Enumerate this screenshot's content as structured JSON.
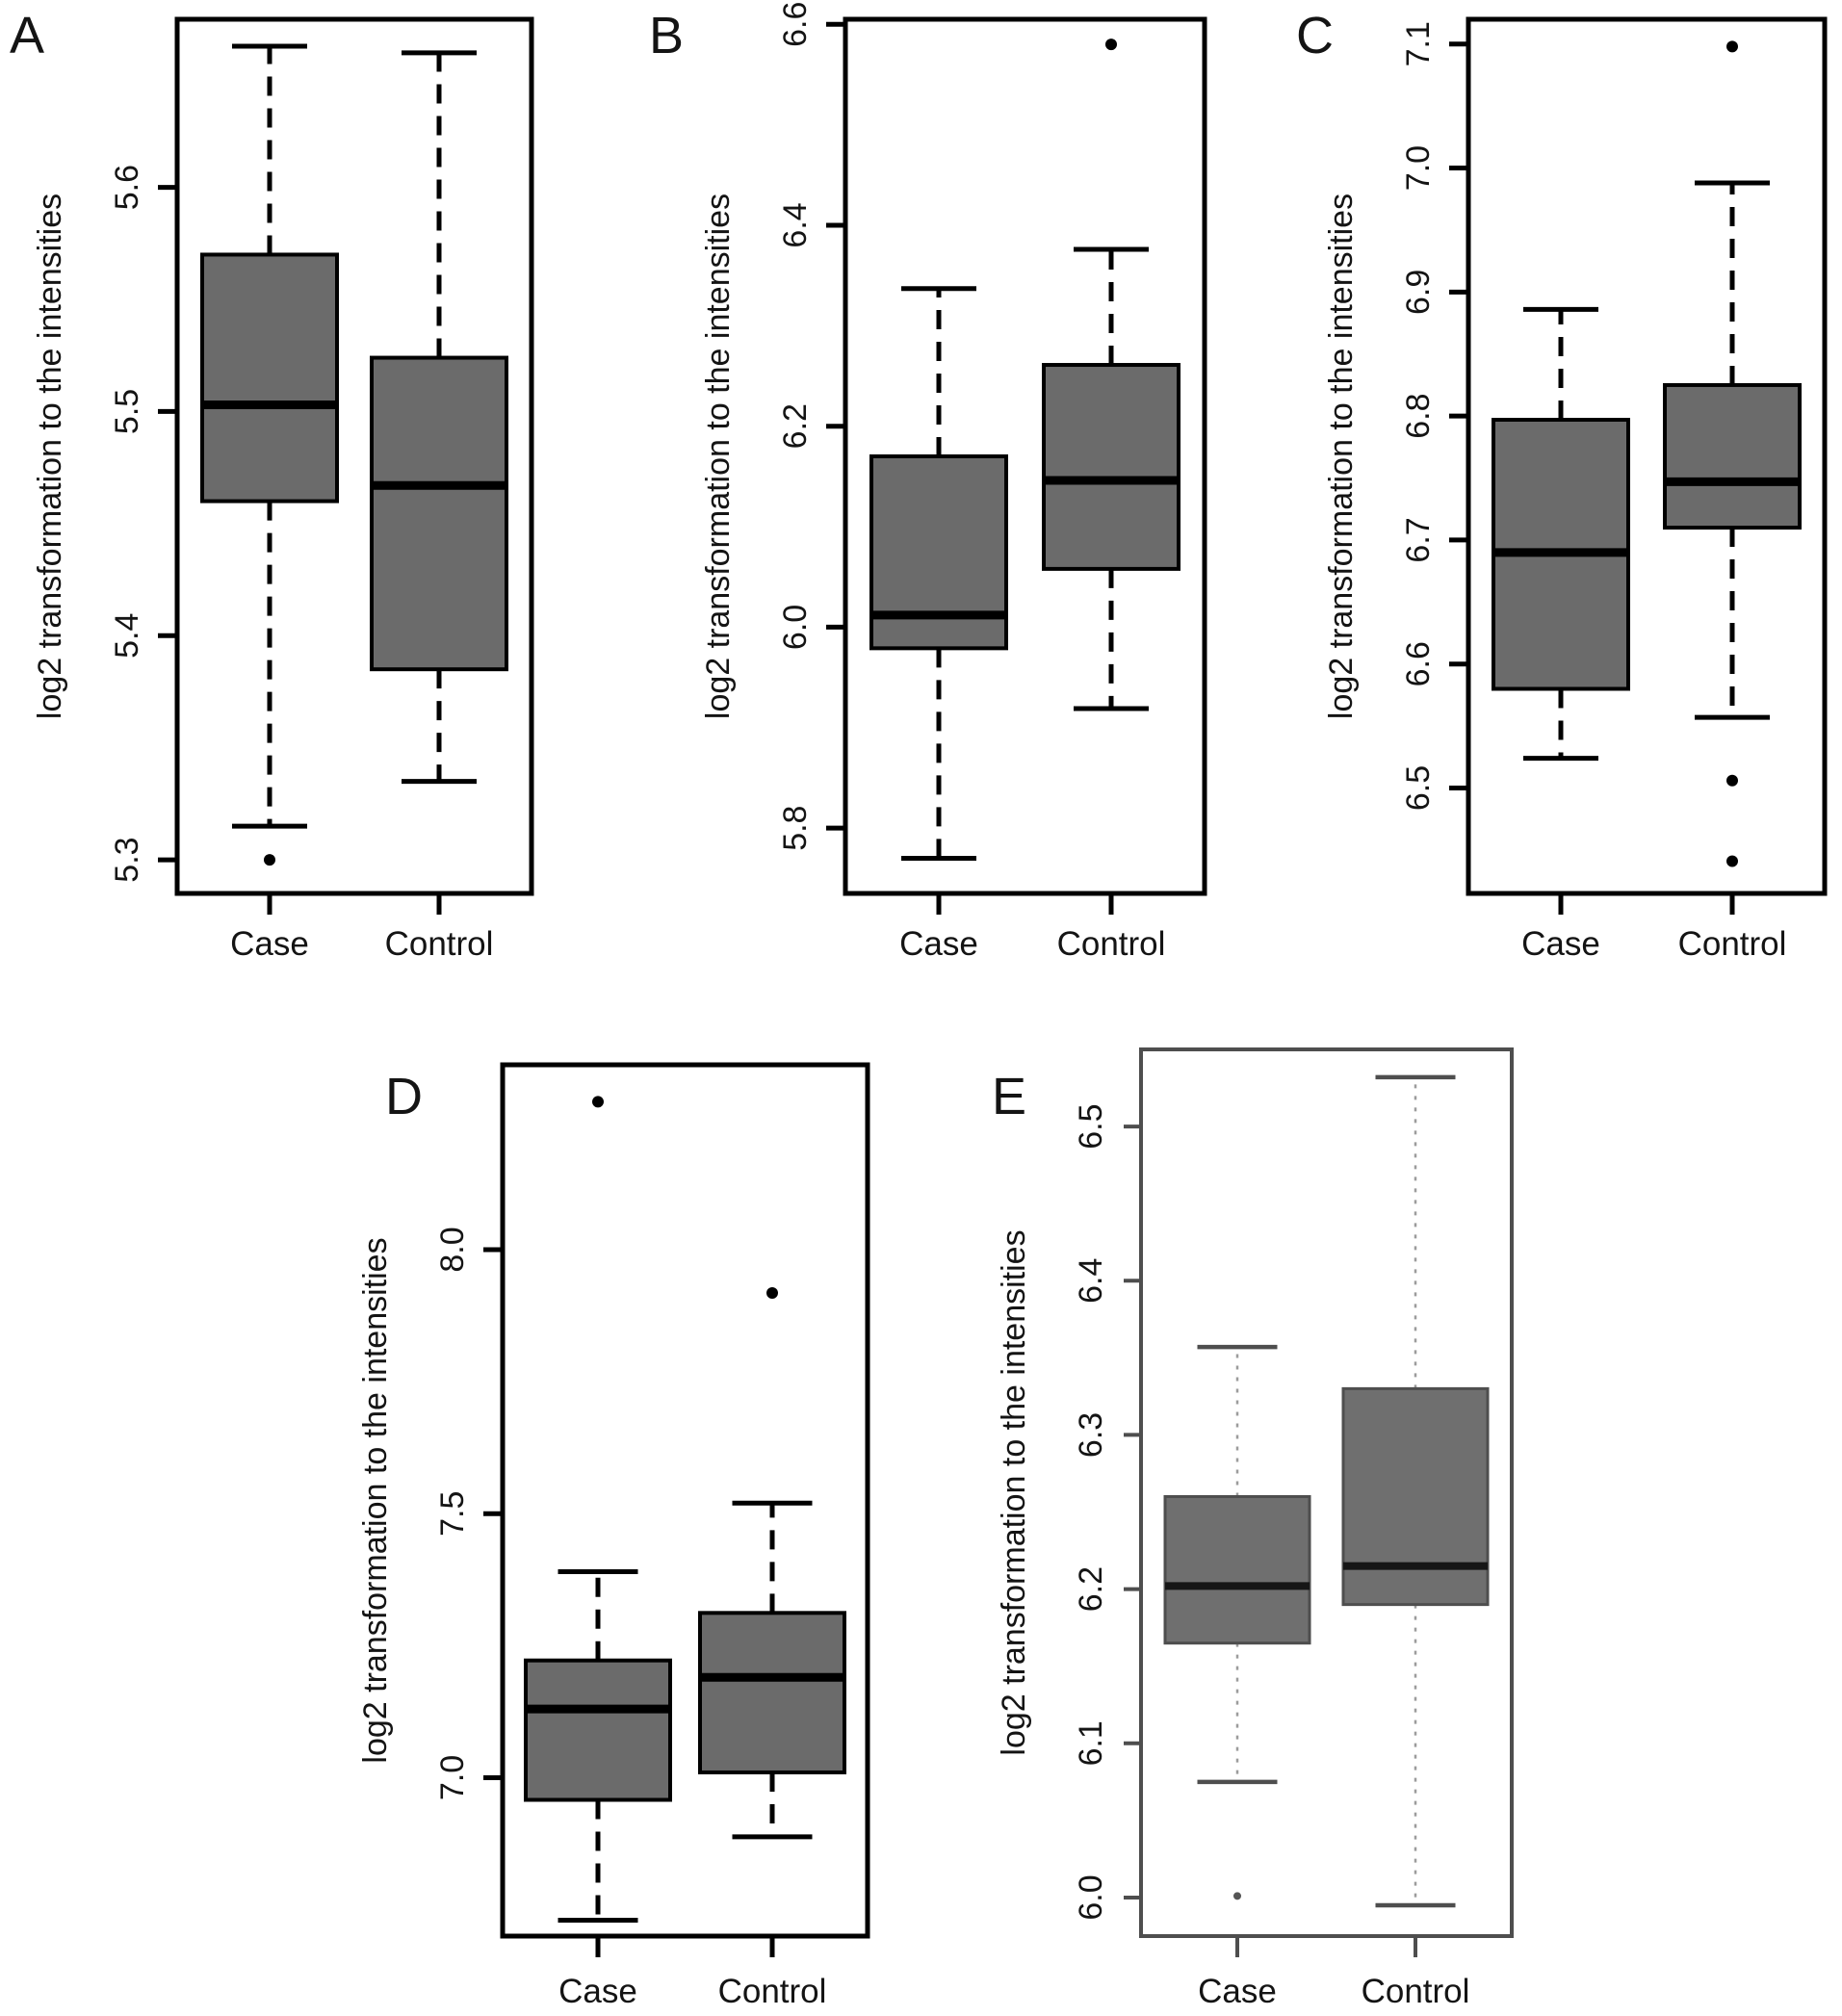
{
  "figure": {
    "background": "#ffffff",
    "text_color": "#141414",
    "box_fill": "#6b6b6b",
    "stroke_color": "#000000",
    "light_stroke_color": "#4e4e4e",
    "light_whisker_color": "#9c9c9c",
    "shared_ylabel": "log2 transformation to the intensities"
  },
  "chart_data": [
    {
      "panel": "A",
      "type": "box",
      "ylabel": "log2 transformation to the intensities",
      "categories": [
        "Case",
        "Control"
      ],
      "ytick_labels": [
        "5.3",
        "5.4",
        "5.5",
        "5.6"
      ],
      "yticks": [
        5.3,
        5.4,
        5.5,
        5.6
      ],
      "ylim": [
        5.285,
        5.675
      ],
      "grid": false,
      "style": "normal",
      "series": [
        {
          "name": "Case",
          "whislo": 5.315,
          "q1": 5.46,
          "med": 5.503,
          "q3": 5.57,
          "whishi": 5.663,
          "outliers": [
            5.3
          ]
        },
        {
          "name": "Control",
          "whislo": 5.335,
          "q1": 5.385,
          "med": 5.467,
          "q3": 5.524,
          "whishi": 5.66,
          "outliers": []
        }
      ]
    },
    {
      "panel": "B",
      "type": "box",
      "ylabel": "log2 transformation to the intensities",
      "categories": [
        "Case",
        "Control"
      ],
      "ytick_labels": [
        "5.8",
        "6.0",
        "6.2",
        "6.4",
        "6.6"
      ],
      "yticks": [
        5.8,
        6.0,
        6.2,
        6.4,
        6.6
      ],
      "ylim": [
        5.735,
        6.605
      ],
      "grid": false,
      "style": "normal",
      "series": [
        {
          "name": "Case",
          "whislo": 5.77,
          "q1": 5.979,
          "med": 6.012,
          "q3": 6.17,
          "whishi": 6.337,
          "outliers": []
        },
        {
          "name": "Control",
          "whislo": 5.919,
          "q1": 6.058,
          "med": 6.146,
          "q3": 6.261,
          "whishi": 6.376,
          "outliers": [
            6.58
          ]
        }
      ]
    },
    {
      "panel": "C",
      "type": "box",
      "ylabel": "log2 transformation to the intensities",
      "categories": [
        "Case",
        "Control"
      ],
      "ytick_labels": [
        "6.5",
        "6.6",
        "6.7",
        "6.8",
        "6.9",
        "7.0",
        "7.1"
      ],
      "yticks": [
        6.5,
        6.6,
        6.7,
        6.8,
        6.9,
        7.0,
        7.1
      ],
      "ylim": [
        6.415,
        7.12
      ],
      "grid": false,
      "style": "normal",
      "series": [
        {
          "name": "Case",
          "whislo": 6.524,
          "q1": 6.58,
          "med": 6.69,
          "q3": 6.797,
          "whishi": 6.886,
          "outliers": []
        },
        {
          "name": "Control",
          "whislo": 6.557,
          "q1": 6.71,
          "med": 6.747,
          "q3": 6.825,
          "whishi": 6.988,
          "outliers": [
            7.098,
            6.506,
            6.441
          ]
        }
      ]
    },
    {
      "panel": "D",
      "type": "box",
      "ylabel": "log2 transformation to the intensities",
      "categories": [
        "Case",
        "Control"
      ],
      "ytick_labels": [
        "7.0",
        "7.5",
        "8.0"
      ],
      "yticks": [
        7.0,
        7.5,
        8.0
      ],
      "ylim": [
        6.7,
        8.35
      ],
      "grid": false,
      "style": "normal",
      "series": [
        {
          "name": "Case",
          "whislo": 6.73,
          "q1": 6.958,
          "med": 7.13,
          "q3": 7.222,
          "whishi": 7.39,
          "outliers": [
            8.28
          ]
        },
        {
          "name": "Control",
          "whislo": 6.888,
          "q1": 7.01,
          "med": 7.19,
          "q3": 7.312,
          "whishi": 7.52,
          "outliers": [
            7.918
          ]
        }
      ]
    },
    {
      "panel": "E",
      "type": "box",
      "ylabel": "log2 transformation to the intensities",
      "categories": [
        "Case",
        "Control"
      ],
      "ytick_labels": [
        "6.0",
        "6.1",
        "6.2",
        "6.3",
        "6.4",
        "6.5"
      ],
      "yticks": [
        6.0,
        6.1,
        6.2,
        6.3,
        6.4,
        6.5
      ],
      "ylim": [
        5.975,
        6.55
      ],
      "grid": false,
      "style": "light",
      "series": [
        {
          "name": "Case",
          "whislo": 6.075,
          "q1": 6.165,
          "med": 6.202,
          "q3": 6.26,
          "whishi": 6.357,
          "outliers": [
            6.001
          ]
        },
        {
          "name": "Control",
          "whislo": 5.995,
          "q1": 6.19,
          "med": 6.215,
          "q3": 6.33,
          "whishi": 6.532,
          "outliers": []
        }
      ]
    }
  ]
}
